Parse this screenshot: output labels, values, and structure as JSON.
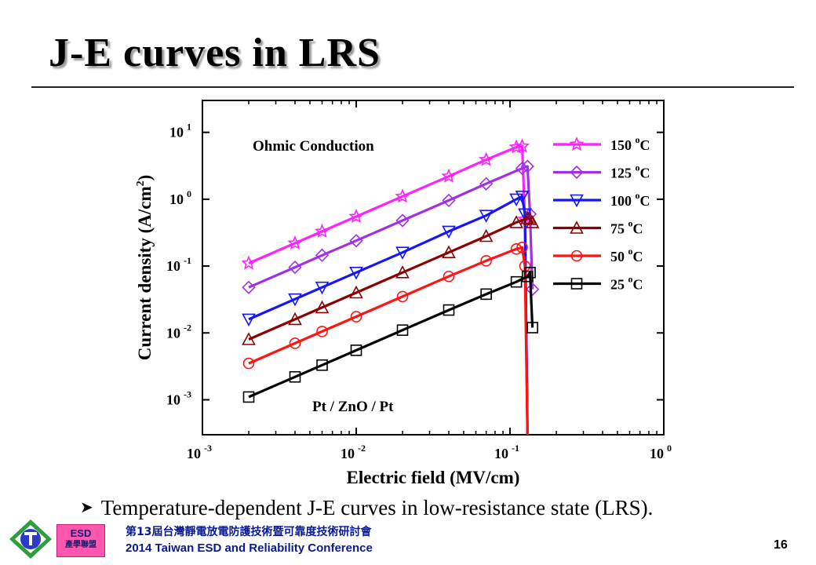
{
  "slide": {
    "title": "J-E curves in LRS",
    "caption": "Temperature-dependent  J-E curves in low-resistance state (LRS).",
    "bullet_icon": "arrow-bullet-icon",
    "page_number": "16"
  },
  "footer": {
    "logo_icon": "tesda-logo-icon",
    "esd_badge_line1": "ESD",
    "esd_badge_line2": "產學聯盟",
    "conference_cn": "第13屆台灣靜電放電防護技術暨可靠度技術研討會",
    "conference_en": "2014 Taiwan ESD and Reliability Conference",
    "colors": {
      "text": "#0b1b8f",
      "badge": "#ff57b0"
    }
  },
  "chart_data": {
    "type": "line",
    "xlabel": "Electric field (MV/cm)",
    "ylabel": "Current density (A/cm2)",
    "xscale": "log",
    "yscale": "log",
    "xlim": [
      0.001,
      1
    ],
    "ylim": [
      0.0003,
      30
    ],
    "x_ticks": [
      {
        "value": 0.001,
        "base": "10",
        "exp": "-3"
      },
      {
        "value": 0.01,
        "base": "10",
        "exp": "-2"
      },
      {
        "value": 0.1,
        "base": "10",
        "exp": "-1"
      },
      {
        "value": 1,
        "base": "10",
        "exp": "0"
      }
    ],
    "y_ticks": [
      {
        "value": 0.001,
        "base": "10",
        "exp": "-3"
      },
      {
        "value": 0.01,
        "base": "10",
        "exp": "-2"
      },
      {
        "value": 0.1,
        "base": "10",
        "exp": "-1"
      },
      {
        "value": 1,
        "base": "10",
        "exp": "0"
      },
      {
        "value": 10,
        "base": "10",
        "exp": "1"
      }
    ],
    "annotations": {
      "top": "Ohmic Conduction",
      "bottom": "Pt / ZnO / Pt"
    },
    "legend_position": "top-right",
    "grid": false,
    "series": [
      {
        "name": "150 oC",
        "label": "150 ",
        "unit": "C",
        "color": "#ff22ff",
        "marker": "star",
        "x": [
          0.002,
          0.004,
          0.006,
          0.01,
          0.02,
          0.04,
          0.07,
          0.11,
          0.12,
          0.125,
          0.13
        ],
        "y": [
          0.11,
          0.22,
          0.33,
          0.55,
          1.1,
          2.2,
          3.9,
          6.0,
          6.2,
          0.5,
          0.0003
        ]
      },
      {
        "name": "125 oC",
        "label": "125 ",
        "unit": "C",
        "color": "#a030e8",
        "marker": "diamond",
        "x": [
          0.002,
          0.004,
          0.006,
          0.01,
          0.02,
          0.04,
          0.07,
          0.12,
          0.13,
          0.135,
          0.14
        ],
        "y": [
          0.048,
          0.096,
          0.145,
          0.24,
          0.48,
          0.96,
          1.7,
          2.9,
          3.1,
          0.6,
          0.045
        ]
      },
      {
        "name": "100 oC",
        "label": "100 ",
        "unit": "C",
        "color": "#1414ff",
        "marker": "triangle-down",
        "x": [
          0.002,
          0.004,
          0.006,
          0.01,
          0.02,
          0.04,
          0.07,
          0.11,
          0.12,
          0.125,
          0.13
        ],
        "y": [
          0.016,
          0.032,
          0.048,
          0.08,
          0.16,
          0.33,
          0.57,
          1.0,
          1.1,
          0.6,
          0.0003
        ]
      },
      {
        "name": "75 oC",
        "label": "75 ",
        "unit": "C",
        "color": "#8b0000",
        "marker": "triangle-up",
        "x": [
          0.002,
          0.004,
          0.006,
          0.01,
          0.02,
          0.04,
          0.07,
          0.11,
          0.13,
          0.135,
          0.14
        ],
        "y": [
          0.008,
          0.016,
          0.024,
          0.04,
          0.08,
          0.16,
          0.28,
          0.45,
          0.52,
          0.5,
          0.45
        ]
      },
      {
        "name": "50 oC",
        "label": "50 ",
        "unit": "C",
        "color": "#ff1414",
        "marker": "circle",
        "x": [
          0.002,
          0.004,
          0.006,
          0.01,
          0.02,
          0.04,
          0.07,
          0.11,
          0.12,
          0.125,
          0.13
        ],
        "y": [
          0.0035,
          0.007,
          0.0105,
          0.0175,
          0.035,
          0.07,
          0.12,
          0.18,
          0.19,
          0.1,
          0.0003
        ]
      },
      {
        "name": "25 oC",
        "label": "25 ",
        "unit": "C",
        "color": "#000000",
        "marker": "square",
        "x": [
          0.002,
          0.004,
          0.006,
          0.01,
          0.02,
          0.04,
          0.07,
          0.11,
          0.13,
          0.135,
          0.14
        ],
        "y": [
          0.0011,
          0.0022,
          0.0033,
          0.0055,
          0.011,
          0.022,
          0.038,
          0.058,
          0.07,
          0.08,
          0.012
        ]
      }
    ]
  }
}
